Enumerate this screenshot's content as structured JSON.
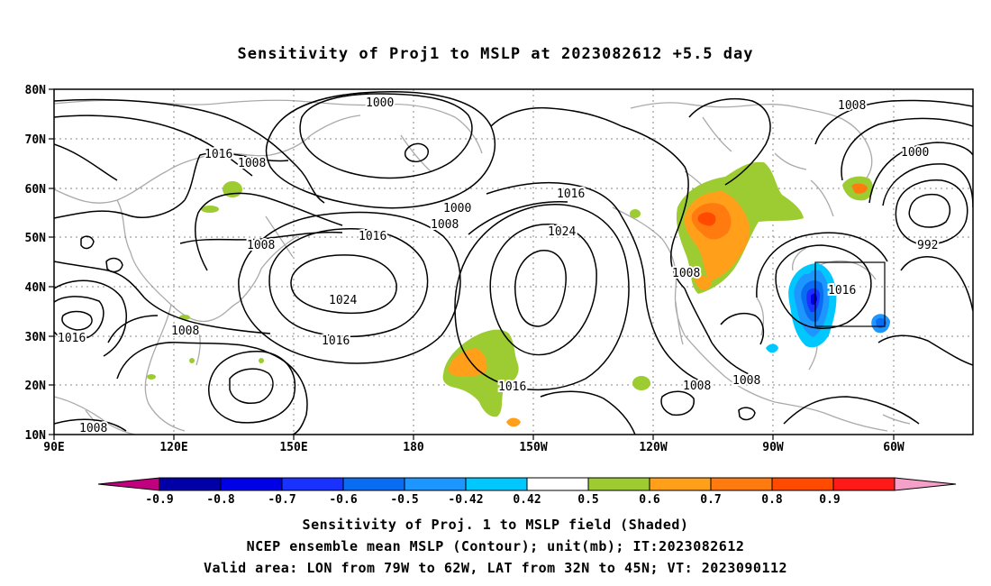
{
  "title": "Sensitivity of Proj1 to MSLP at 2023082612 +5.5 day",
  "lat_labels": [
    "80N",
    "70N",
    "60N",
    "50N",
    "40N",
    "30N",
    "20N",
    "10N"
  ],
  "lon_labels": [
    "90E",
    "120E",
    "150E",
    "180",
    "150W",
    "120W",
    "90W",
    "60W"
  ],
  "contour_labels": [
    "1000",
    "1008",
    "1016",
    "1008",
    "1000",
    "1008",
    "1016",
    "1024",
    "1008",
    "1016",
    "1016",
    "1024",
    "1008",
    "1008",
    "1016",
    "1016",
    "1008",
    "1008",
    "1008",
    "1016",
    "1000",
    "992"
  ],
  "colorbar": {
    "labels": [
      "-0.9",
      "-0.8",
      "-0.7",
      "-0.6",
      "-0.5",
      "-0.42",
      "0.42",
      "0.5",
      "0.6",
      "0.7",
      "0.8",
      "0.9"
    ],
    "colors": [
      "#c0007f",
      "#0000a6",
      "#0000e6",
      "#1a32ff",
      "#0a6cf0",
      "#1e96ff",
      "#00c8ff",
      "#ffffff",
      "#9ccc32",
      "#ff9f1a",
      "#ff7b10",
      "#ff4a00",
      "#ff1a1a",
      "#f5a0c8"
    ]
  },
  "captions": [
    "Sensitivity of Proj. 1 to MSLP field (Shaded)",
    "NCEP ensemble mean MSLP (Contour); unit(mb); IT:2023082612",
    "Valid area: LON from 79W to 62W, LAT from 32N to 45N; VT: 2023090112"
  ]
}
